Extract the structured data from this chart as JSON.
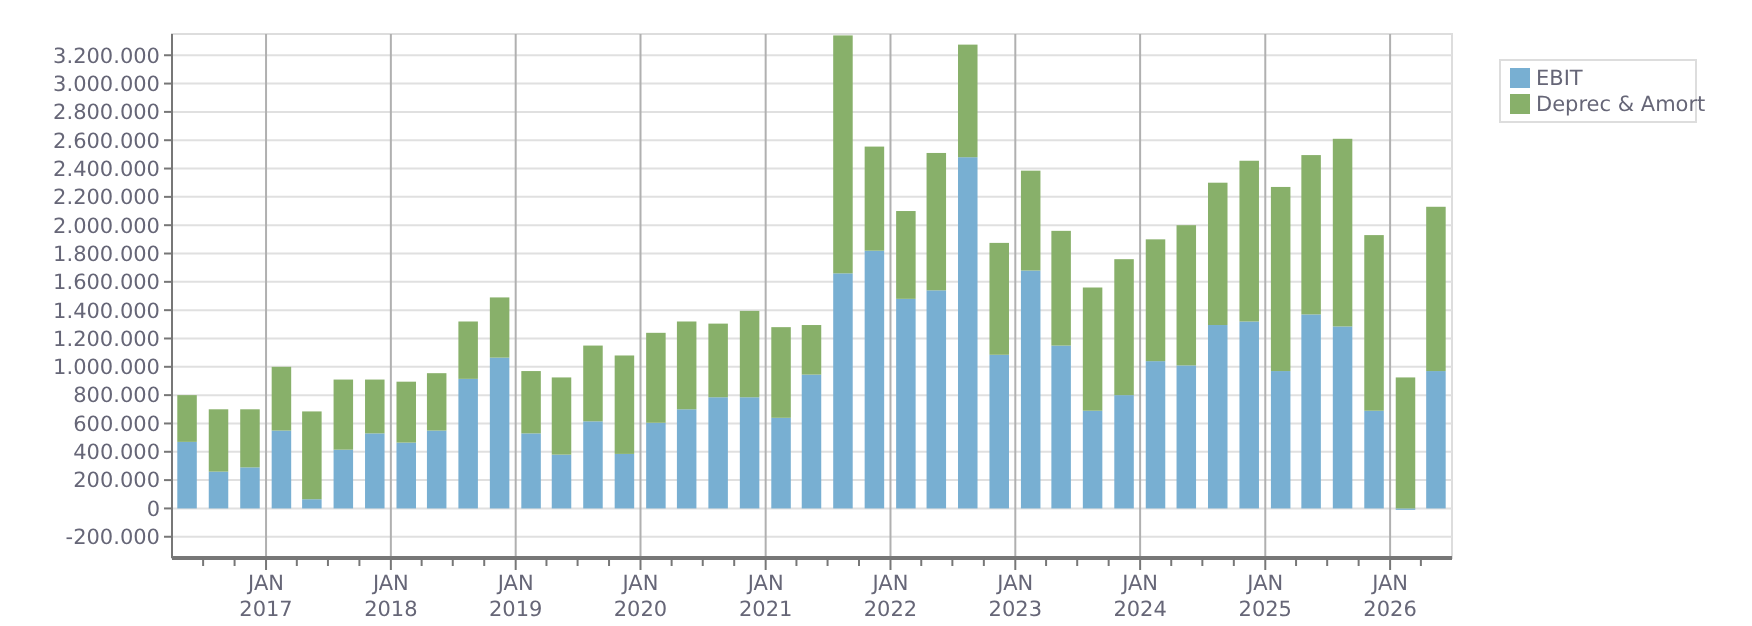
{
  "chart_data": {
    "type": "bar",
    "stacked": true,
    "x": [
      "2016-05-15",
      "2016-08-15",
      "2016-11-15",
      "2017-02-15",
      "2017-05-15",
      "2017-08-15",
      "2017-11-15",
      "2018-02-15",
      "2018-05-15",
      "2018-08-15",
      "2018-11-15",
      "2019-02-15",
      "2019-05-15",
      "2019-08-15",
      "2019-11-15",
      "2020-02-15",
      "2020-05-15",
      "2020-08-15",
      "2020-11-15",
      "2021-02-15",
      "2021-05-15",
      "2021-08-15",
      "2021-11-15",
      "2022-02-15",
      "2022-05-15",
      "2022-08-15",
      "2022-11-15",
      "2023-02-15",
      "2023-05-15",
      "2023-08-15",
      "2023-11-15",
      "2024-02-15",
      "2024-05-15",
      "2024-08-15",
      "2024-11-15",
      "2025-02-15",
      "2025-05-15",
      "2025-08-15",
      "2025-11-15",
      "2026-02-15",
      "2026-05-15"
    ],
    "series": [
      {
        "name": "EBIT",
        "color": "#78afd2",
        "values": [
          470000,
          260000,
          290000,
          550000,
          65000,
          415000,
          530000,
          465000,
          550000,
          915000,
          1065000,
          530000,
          380000,
          615000,
          385000,
          605000,
          700000,
          785000,
          785000,
          640000,
          945000,
          1660000,
          1820000,
          1480000,
          1540000,
          2480000,
          1085000,
          1680000,
          1150000,
          690000,
          800000,
          1040000,
          1010000,
          1295000,
          1320000,
          970000,
          1370000,
          1285000,
          690000,
          -10000,
          970000
        ]
      },
      {
        "name": "Deprec & Amort",
        "color": "#88b06a",
        "values": [
          330000,
          440000,
          410000,
          450000,
          620000,
          495000,
          380000,
          430000,
          405000,
          405000,
          425000,
          440000,
          545000,
          535000,
          695000,
          635000,
          620000,
          520000,
          610000,
          640000,
          350000,
          1680000,
          735000,
          620000,
          970000,
          795000,
          790000,
          705000,
          810000,
          870000,
          960000,
          860000,
          990000,
          1005000,
          1135000,
          1300000,
          1125000,
          1325000,
          1240000,
          925000,
          1160000
        ]
      }
    ],
    "xlim": [
      "2016-04-01",
      "2026-07-01"
    ],
    "xticks": [
      {
        "value": "2016-07-01",
        "label": null
      },
      {
        "value": "2016-10-01",
        "label": null
      },
      {
        "value": "2017-01-01",
        "label": "JAN\n2017"
      },
      {
        "value": "2017-04-01",
        "label": null
      },
      {
        "value": "2017-07-01",
        "label": null
      },
      {
        "value": "2017-10-01",
        "label": null
      },
      {
        "value": "2018-01-01",
        "label": "JAN\n2018"
      },
      {
        "value": "2018-04-01",
        "label": null
      },
      {
        "value": "2018-07-01",
        "label": null
      },
      {
        "value": "2018-10-01",
        "label": null
      },
      {
        "value": "2019-01-01",
        "label": "JAN\n2019"
      },
      {
        "value": "2019-04-01",
        "label": null
      },
      {
        "value": "2019-07-01",
        "label": null
      },
      {
        "value": "2019-10-01",
        "label": null
      },
      {
        "value": "2020-01-01",
        "label": "JAN\n2020"
      },
      {
        "value": "2020-04-01",
        "label": null
      },
      {
        "value": "2020-07-01",
        "label": null
      },
      {
        "value": "2020-10-01",
        "label": null
      },
      {
        "value": "2021-01-01",
        "label": "JAN\n2021"
      },
      {
        "value": "2021-04-01",
        "label": null
      },
      {
        "value": "2021-07-01",
        "label": null
      },
      {
        "value": "2021-10-01",
        "label": null
      },
      {
        "value": "2022-01-01",
        "label": "JAN\n2022"
      },
      {
        "value": "2022-04-01",
        "label": null
      },
      {
        "value": "2022-07-01",
        "label": null
      },
      {
        "value": "2022-10-01",
        "label": null
      },
      {
        "value": "2023-01-01",
        "label": "JAN\n2023"
      },
      {
        "value": "2023-04-01",
        "label": null
      },
      {
        "value": "2023-07-01",
        "label": null
      },
      {
        "value": "2023-10-01",
        "label": null
      },
      {
        "value": "2024-01-01",
        "label": "JAN\n2024"
      },
      {
        "value": "2024-04-01",
        "label": null
      },
      {
        "value": "2024-07-01",
        "label": null
      },
      {
        "value": "2024-10-01",
        "label": null
      },
      {
        "value": "2025-01-01",
        "label": "JAN\n2025"
      },
      {
        "value": "2025-04-01",
        "label": null
      },
      {
        "value": "2025-07-01",
        "label": null
      },
      {
        "value": "2025-10-01",
        "label": null
      },
      {
        "value": "2026-01-01",
        "label": "JAN\n2026"
      },
      {
        "value": "2026-04-01",
        "label": null
      }
    ],
    "ylim": [
      -350000,
      3350000
    ],
    "yticks": [
      {
        "value": -200000,
        "label": "-200.000"
      },
      {
        "value": 0,
        "label": "0"
      },
      {
        "value": 200000,
        "label": "200.000"
      },
      {
        "value": 400000,
        "label": "400.000"
      },
      {
        "value": 600000,
        "label": "600.000"
      },
      {
        "value": 800000,
        "label": "800.000"
      },
      {
        "value": 1000000,
        "label": "1.000.000"
      },
      {
        "value": 1200000,
        "label": "1.200.000"
      },
      {
        "value": 1400000,
        "label": "1.400.000"
      },
      {
        "value": 1600000,
        "label": "1.600.000"
      },
      {
        "value": 1800000,
        "label": "1.800.000"
      },
      {
        "value": 2000000,
        "label": "2.000.000"
      },
      {
        "value": 2200000,
        "label": "2.200.000"
      },
      {
        "value": 2400000,
        "label": "2.400.000"
      },
      {
        "value": 2600000,
        "label": "2.600.000"
      },
      {
        "value": 2800000,
        "label": "2.800.000"
      },
      {
        "value": 3000000,
        "label": "3.000.000"
      },
      {
        "value": 3200000,
        "label": "3.200.000"
      }
    ],
    "grid": true,
    "legend": "top right"
  }
}
